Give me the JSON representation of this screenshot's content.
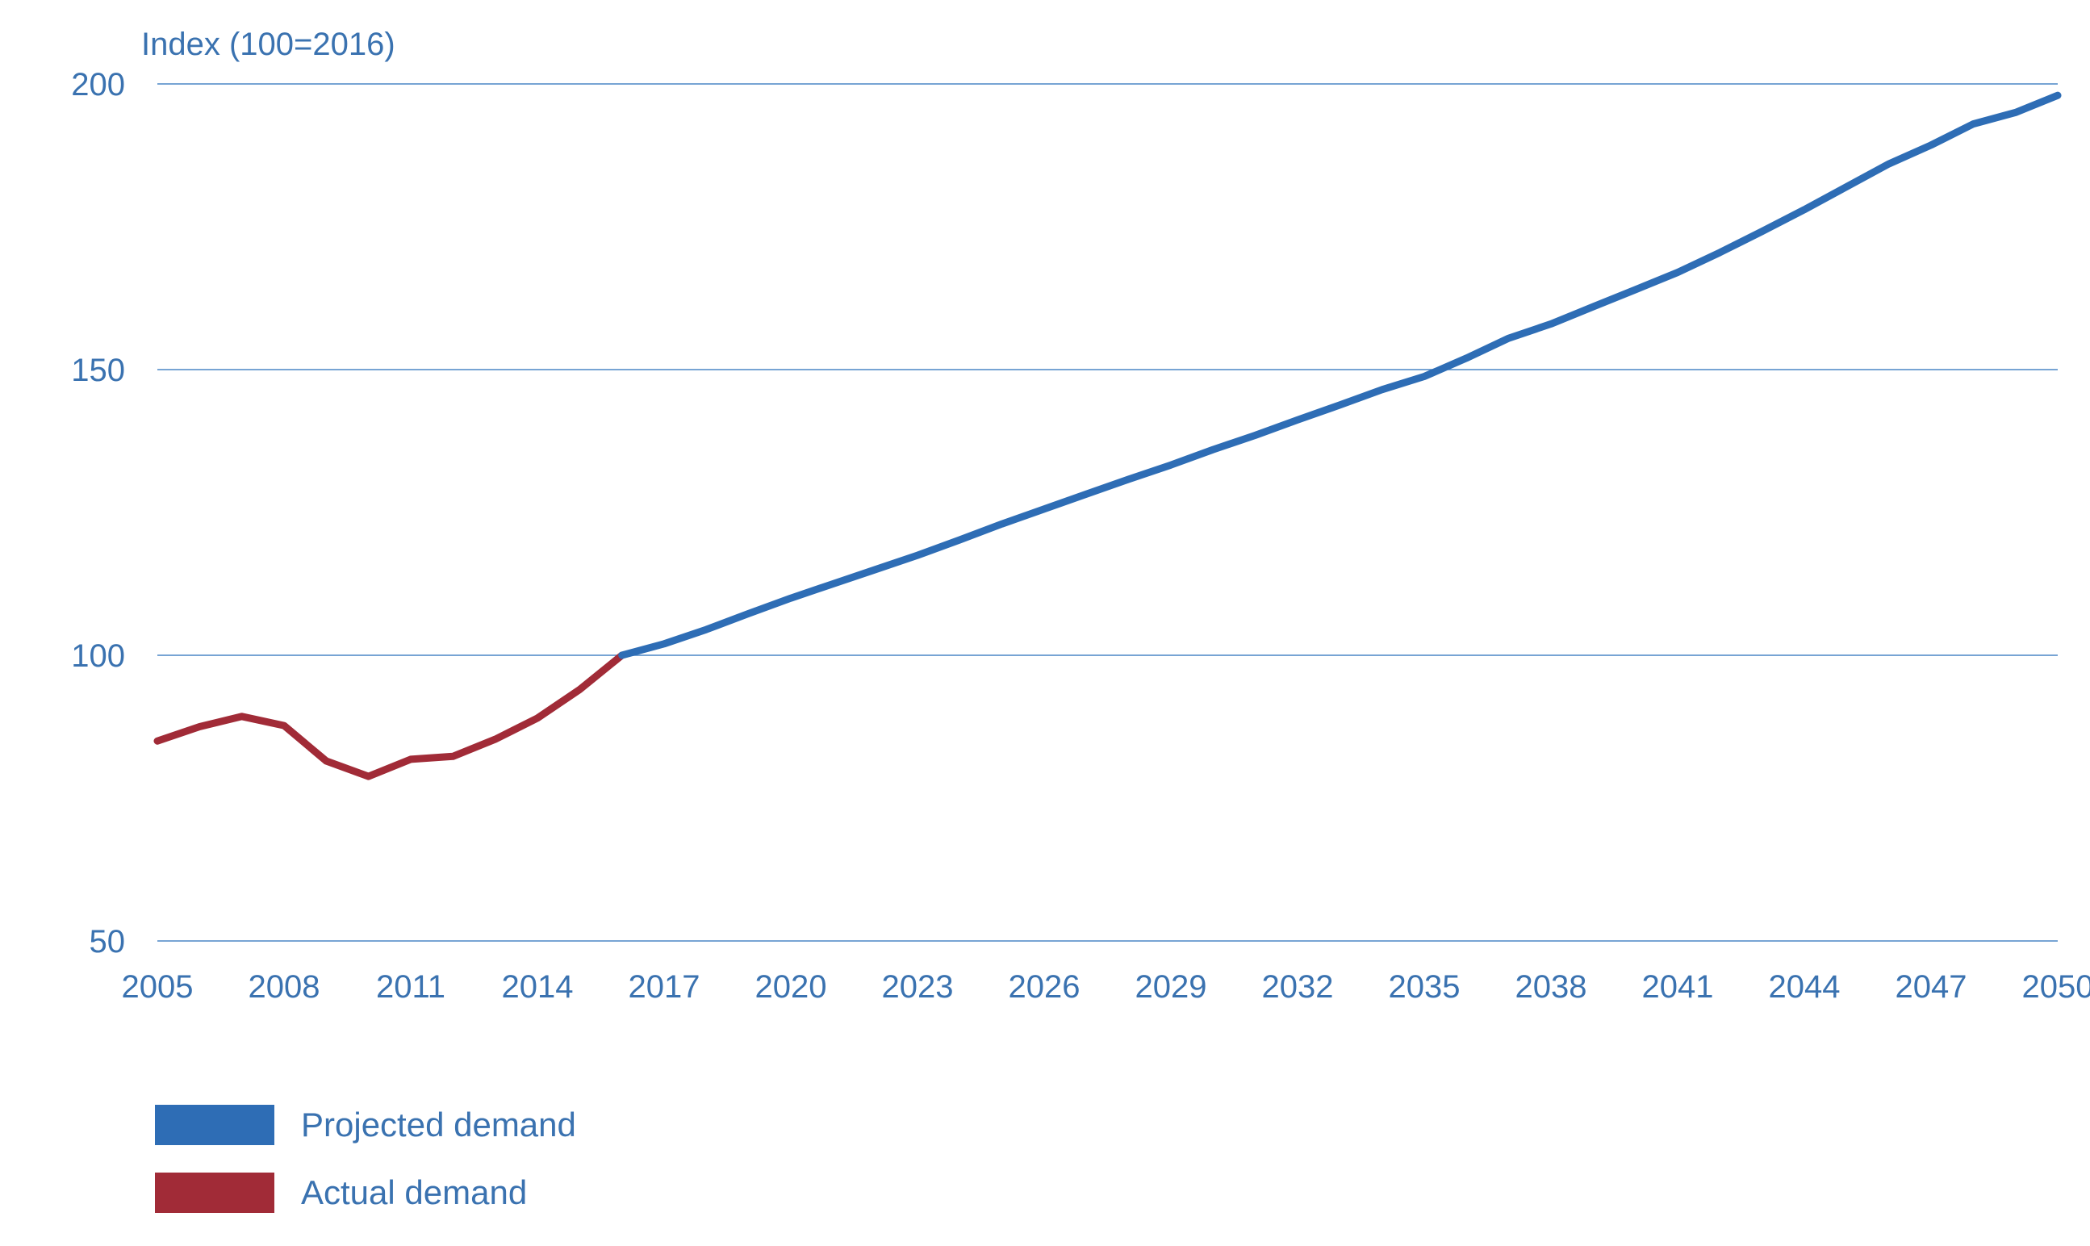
{
  "colors": {
    "projected": "#2e6db5",
    "actual": "#a12b37",
    "text": "#3a72b0",
    "grid": "#4a86c5"
  },
  "chart_data": {
    "type": "line",
    "ylabel": "Index (100=2016)",
    "xlabel": "",
    "title": "",
    "ylim": [
      50,
      200
    ],
    "xlim": [
      2005,
      2050
    ],
    "yticks": [
      50,
      100,
      150,
      200
    ],
    "xticks": [
      2005,
      2008,
      2011,
      2014,
      2017,
      2020,
      2023,
      2026,
      2029,
      2032,
      2035,
      2038,
      2041,
      2044,
      2047,
      2050
    ],
    "grid": "horizontal",
    "legend_position": "bottom-left",
    "legend": [
      "Projected demand",
      "Actual demand"
    ],
    "series": [
      {
        "name": "Actual demand",
        "color": "#a12b37",
        "x": [
          2005,
          2006,
          2007,
          2008,
          2009,
          2010,
          2011,
          2012,
          2013,
          2014,
          2015,
          2016
        ],
        "y": [
          85,
          87.5,
          89.3,
          87.7,
          81.5,
          78.8,
          81.8,
          82.3,
          85.3,
          89,
          94,
          100
        ]
      },
      {
        "name": "Projected demand",
        "color": "#2e6db5",
        "x": [
          2016,
          2017,
          2018,
          2019,
          2020,
          2021,
          2022,
          2023,
          2024,
          2025,
          2026,
          2027,
          2028,
          2029,
          2030,
          2031,
          2032,
          2033,
          2034,
          2035,
          2036,
          2037,
          2038,
          2039,
          2040,
          2041,
          2042,
          2043,
          2044,
          2045,
          2046,
          2047,
          2048,
          2049,
          2050
        ],
        "y": [
          100,
          102,
          104.5,
          107.3,
          110,
          112.5,
          115,
          117.5,
          120.2,
          123,
          125.6,
          128.2,
          130.8,
          133.3,
          136,
          138.5,
          141.2,
          143.8,
          146.5,
          148.8,
          152,
          155.5,
          158,
          161,
          164,
          167,
          170.5,
          174.2,
          178,
          182,
          186,
          189.3,
          193,
          195,
          198
        ]
      }
    ]
  }
}
